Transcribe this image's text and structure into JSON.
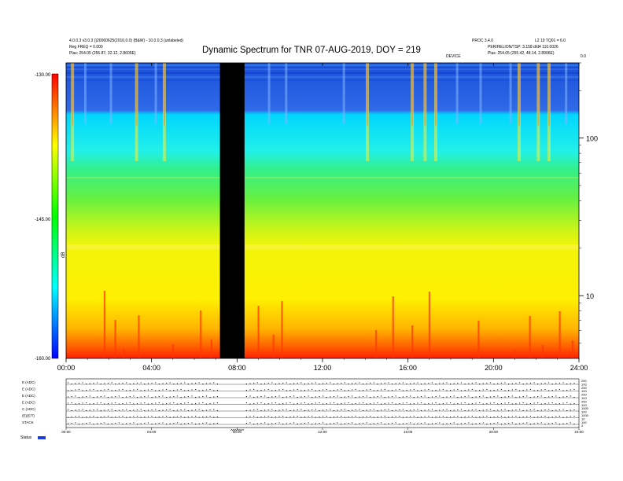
{
  "header": {
    "left_line1": "4.0.0.3 v3.0.3 ()20060625(2010.0.0) (B&W) - 10.0.0.3 (unlabeled)",
    "left_line2": "Reg FREQ = 0.000",
    "left_line3": "Plas: 254.05 (255.87, 32.12, 2.8605E)",
    "right_line1": "PROC 3.4.0",
    "right_line1b": "L2 19 TQ01 = 6.0",
    "right_line2": "PERIHELION/TSP: 3.158 d/d4 110.0026",
    "right_line3": "Plas: 254.05 (255.42, 48.14, 2.8906E)",
    "small_mark": "DEVICE",
    "corner_mark": "0.0"
  },
  "title": "Dynamic Spectrum for TNR 07-AUG-2019, DOY = 219",
  "chart_data": {
    "type": "heatmap",
    "title": "Dynamic Spectrum for TNR 07-AUG-2019, DOY = 219",
    "x_ticks": [
      "00:00",
      "04:00",
      "08:00",
      "12:00",
      "16:00",
      "20:00",
      "24:00"
    ],
    "x_range_hours": [
      0,
      24
    ],
    "y_scale": "log",
    "y_ticks": [
      10,
      100
    ],
    "y_range_khz": [
      4,
      300
    ],
    "colorbar": {
      "ticks": [
        "-130.00",
        "-145.00",
        "-160.00"
      ],
      "range": [
        -160,
        -130
      ],
      "label": "dB",
      "colors": [
        "#0000ff",
        "#00ffff",
        "#00ff00",
        "#ffff00",
        "#ff0000"
      ]
    },
    "data_gap_hours": [
      7.2,
      8.35
    ],
    "burst_hours": [
      0.3,
      3.3,
      4.6,
      14.1,
      16.2,
      16.8,
      17.3,
      21.2,
      22.1,
      22.6
    ],
    "lower_panel": {
      "row_labels": [
        "E (ADC)",
        "E (ADC)",
        "E (ADC)",
        "E (ADC)",
        "C (ADC)",
        "(E)(E/T)",
        "STACK"
      ],
      "right_values": [
        "250",
        "100",
        "250",
        "100",
        "250",
        "100",
        "250",
        "100",
        "1000",
        "100",
        "1000",
        "10",
        "100",
        "0"
      ],
      "x_ticks": [
        "00:00",
        "04:00",
        "08:00",
        "12:00",
        "16:00",
        "20:00",
        "24:00"
      ],
      "status_label": "Status"
    }
  }
}
